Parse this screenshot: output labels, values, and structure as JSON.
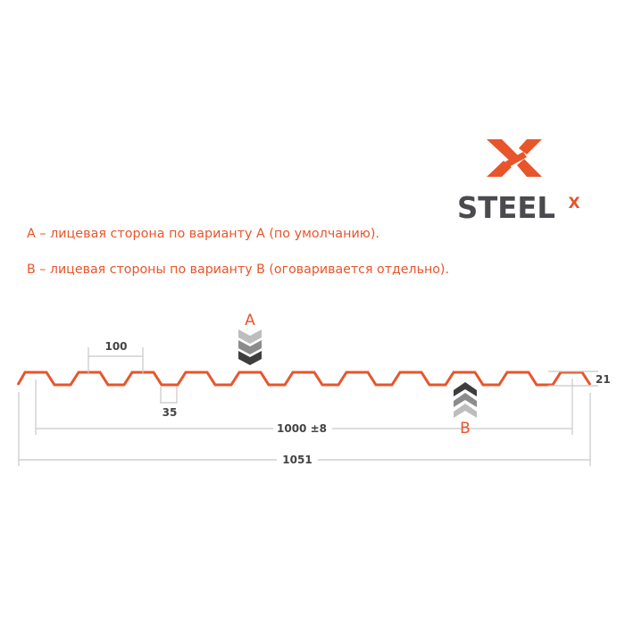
{
  "colors": {
    "accent": "#e8552b",
    "text_dark": "#444444",
    "dim_line": "#c8c8c8",
    "logo_text": "#4a4a4f"
  },
  "logo": {
    "text": "STEEL",
    "superscript": "X"
  },
  "notes": [
    "A – лицевая сторона по варианту А (по умолчанию).",
    "B – лицевая стороны по варианту B (оговаривается отдельно)."
  ],
  "sides": {
    "a_label": "A",
    "b_label": "B"
  },
  "dimensions": {
    "pitch": "100",
    "bottom_width": "35",
    "height": "21",
    "useful_width": "1000 ±8",
    "total_width": "1051"
  }
}
